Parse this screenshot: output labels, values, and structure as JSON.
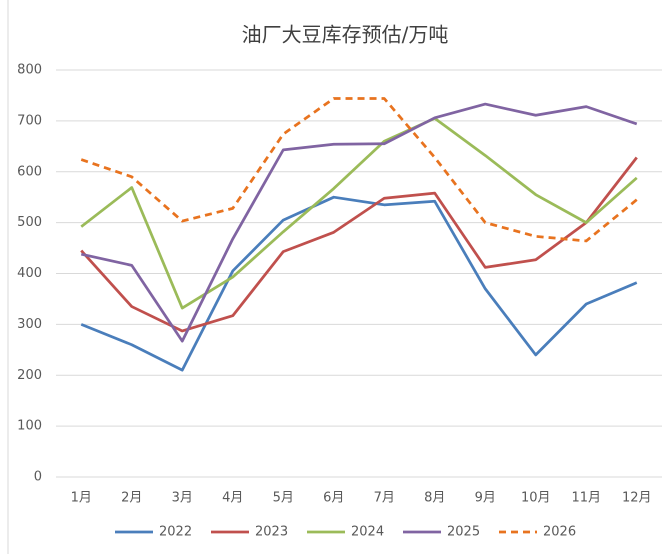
{
  "chart_data": {
    "type": "line",
    "title": "油厂大豆库存预估/万吨",
    "categories": [
      "1月",
      "2月",
      "3月",
      "4月",
      "5月",
      "6月",
      "7月",
      "8月",
      "9月",
      "10月",
      "11月",
      "12月"
    ],
    "series": [
      {
        "name": "2022",
        "color": "#4a7ebb",
        "dashed": false,
        "values": [
          300,
          260,
          210,
          405,
          505,
          550,
          535,
          542,
          370,
          240,
          340,
          382
        ]
      },
      {
        "name": "2023",
        "color": "#c0504d",
        "dashed": false,
        "values": [
          445,
          335,
          287,
          317,
          443,
          481,
          548,
          558,
          412,
          427,
          500,
          628
        ]
      },
      {
        "name": "2024",
        "color": "#9bbb59",
        "dashed": false,
        "values": [
          492,
          569,
          332,
          393,
          482,
          567,
          660,
          705,
          632,
          555,
          500,
          588
        ]
      },
      {
        "name": "2025",
        "color": "#8064a2",
        "dashed": false,
        "values": [
          438,
          416,
          267,
          468,
          643,
          654,
          655,
          706,
          733,
          711,
          728,
          694
        ]
      },
      {
        "name": "2026",
        "color": "#e8731f",
        "dashed": true,
        "values": [
          624,
          590,
          503,
          528,
          674,
          744,
          744,
          628,
          500,
          473,
          464,
          545
        ]
      }
    ],
    "ylim": [
      0,
      800
    ],
    "yticks": [
      0,
      100,
      200,
      300,
      400,
      500,
      600,
      700,
      800
    ],
    "grid": true,
    "legend": "bottom"
  }
}
